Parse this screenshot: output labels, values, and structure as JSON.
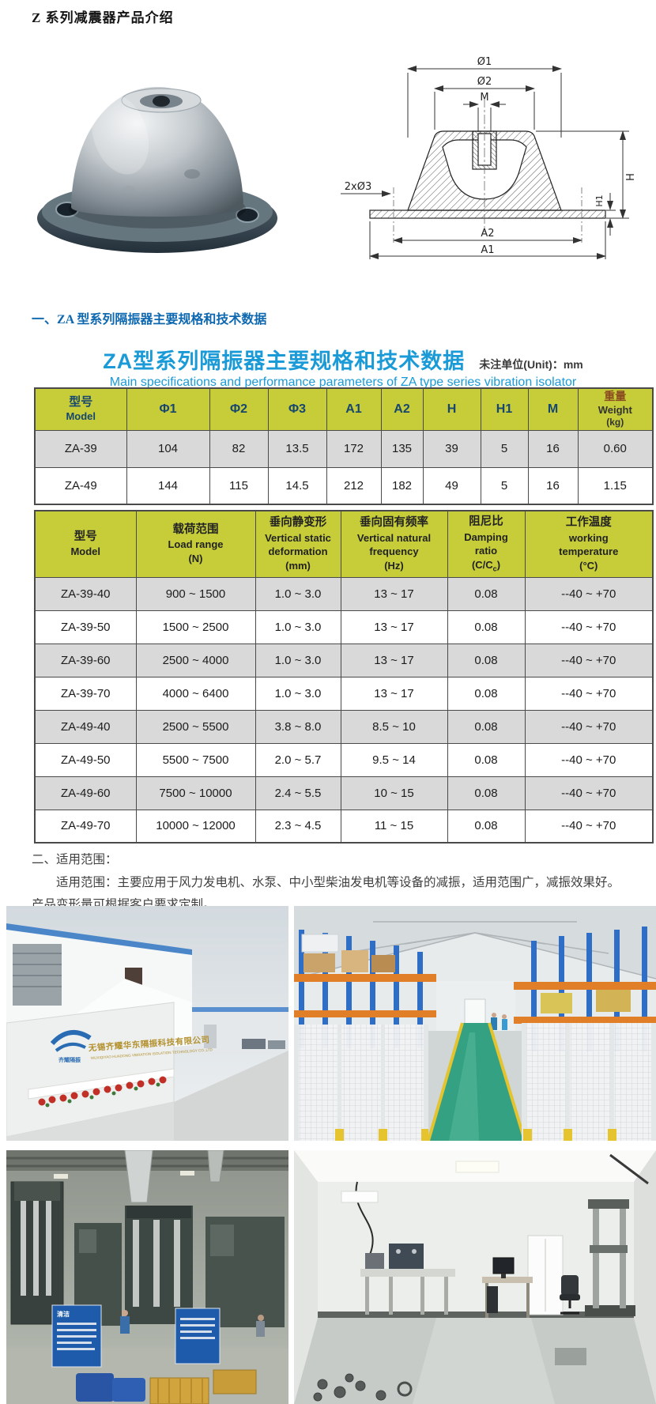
{
  "colors": {
    "heading_blue": "#0d68b0",
    "table_title_blue": "#1a9ad6",
    "table_header_bg": "#c6cd39",
    "table1_header_text": "#17466f",
    "weight_cn_text": "#8a4a1f",
    "row_alt_bg": "#d9d9d9",
    "table_border": "#4a4a4a"
  },
  "page": {
    "title": "Z 系列减震器产品介绍"
  },
  "drawing": {
    "labels": {
      "d1": "Ø1",
      "d2": "Ø2",
      "m": "M",
      "d3": "2xØ3",
      "a2": "A2",
      "a1": "A1",
      "h": "H",
      "h1": "H1"
    }
  },
  "sections": {
    "s1_heading": "一、ZA 型系列隔振器主要规格和技术数据",
    "s2_heading": "二、适用范围：",
    "s2_body": "适用范围：主要应用于风力发电机、水泵、中小型柴油发电机等设备的减振，适用范围广，减振效果好。产品变形量可根据客户要求定制。"
  },
  "spec_header": {
    "title_cn": "ZA型系列隔振器主要规格和技术数据",
    "unit_note": "未注单位(Unit)：mm",
    "title_en": "Main specifications and performance parameters of ZA type series vibration isolator"
  },
  "table1": {
    "col_model": {
      "cn": "型号",
      "en": "Model"
    },
    "cols": [
      "Φ1",
      "Φ2",
      "Φ3",
      "A1",
      "A2",
      "H",
      "H1",
      "M"
    ],
    "col_weight": {
      "cn": "重量",
      "en": "Weight",
      "unit": "(kg)"
    },
    "rows": [
      [
        "ZA-39",
        "104",
        "82",
        "13.5",
        "172",
        "135",
        "39",
        "5",
        "16",
        "0.60"
      ],
      [
        "ZA-49",
        "144",
        "115",
        "14.5",
        "212",
        "182",
        "49",
        "5",
        "16",
        "1.15"
      ]
    ]
  },
  "table2": {
    "headers": [
      {
        "cn": "型号",
        "en": "Model",
        "en2": "",
        "unit": ""
      },
      {
        "cn": "载荷范围",
        "en": "Load range",
        "en2": "",
        "unit": "(N)"
      },
      {
        "cn": "垂向静变形",
        "en": "Vertical static",
        "en2": "deformation",
        "unit": "(mm)"
      },
      {
        "cn": "垂向固有频率",
        "en": "Vertical natural",
        "en2": "frequency",
        "unit": "(Hz)"
      },
      {
        "cn": "阻尼比",
        "en": "Damping",
        "en2": "ratio",
        "unit": "(C/Cc)"
      },
      {
        "cn": "工作温度",
        "en": "working",
        "en2": "temperature",
        "unit": "(°C)"
      }
    ],
    "damping_sub": {
      "a": "(C/C",
      "sub": "c",
      "b": ")"
    },
    "rows": [
      [
        "ZA-39-40",
        "900 ~ 1500",
        "1.0 ~ 3.0",
        "13 ~ 17",
        "0.08",
        "--40 ~ +70"
      ],
      [
        "ZA-39-50",
        "1500 ~ 2500",
        "1.0 ~ 3.0",
        "13 ~ 17",
        "0.08",
        "--40 ~ +70"
      ],
      [
        "ZA-39-60",
        "2500 ~ 4000",
        "1.0 ~ 3.0",
        "13 ~ 17",
        "0.08",
        "--40 ~ +70"
      ],
      [
        "ZA-39-70",
        "4000 ~ 6400",
        "1.0 ~ 3.0",
        "13 ~ 17",
        "0.08",
        "--40 ~ +70"
      ],
      [
        "ZA-49-40",
        "2500 ~ 5500",
        "3.8 ~ 8.0",
        "8.5 ~ 10",
        "0.08",
        "--40 ~ +70"
      ],
      [
        "ZA-49-50",
        "5500 ~ 7500",
        "2.0 ~ 5.7",
        "9.5 ~ 14",
        "0.08",
        "--40 ~ +70"
      ],
      [
        "ZA-49-60",
        "7500 ~ 10000",
        "2.4 ~ 5.5",
        "10 ~ 15",
        "0.08",
        "--40 ~ +70"
      ],
      [
        "ZA-49-70",
        "10000 ~ 12000",
        "2.3 ~ 4.5",
        "11 ~ 15",
        "0.08",
        "--40 ~ +70"
      ]
    ]
  },
  "photos": {
    "sign_logo_text": "齐耀隔振",
    "sign_cn": "无锡齐耀华东隔振科技有限公司",
    "sign_en": "WUXIQIYAO HUADONG VIBRATION ISOLATION TECHNOLOGY CO.,LTD",
    "factory_sign_label": "清洁"
  }
}
